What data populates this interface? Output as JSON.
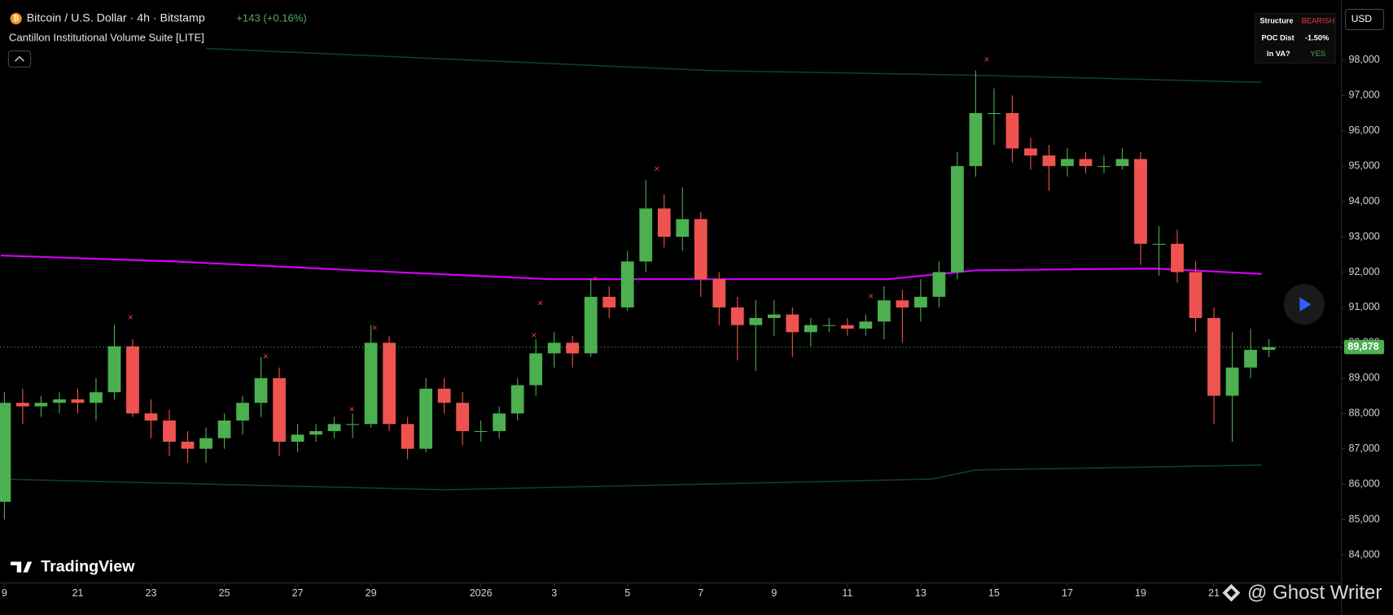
{
  "chart_data": {
    "type": "candlestick",
    "title": "Bitcoin / U.S. Dollar · 4h · Bitstamp",
    "change": "+143 (+0.16%)",
    "subtitle": "Cantillon Institutional Volume Suite [LITE]",
    "brand": "TradingView",
    "currency": "USD",
    "watermark": "@ Ghost Writer",
    "up_color": "#4caf50",
    "down_color": "#ef5350",
    "xlim": [
      -0.12,
      36.48
    ],
    "xticks": [
      {
        "value": 0,
        "label": "9"
      },
      {
        "value": 2,
        "label": "21"
      },
      {
        "value": 4,
        "label": "23"
      },
      {
        "value": 6,
        "label": "25"
      },
      {
        "value": 8,
        "label": "27"
      },
      {
        "value": 10,
        "label": "29"
      },
      {
        "value": 13,
        "label": "2026"
      },
      {
        "value": 15,
        "label": "3"
      },
      {
        "value": 17,
        "label": "5"
      },
      {
        "value": 19,
        "label": "7"
      },
      {
        "value": 21,
        "label": "9"
      },
      {
        "value": 23,
        "label": "11"
      },
      {
        "value": 25,
        "label": "13"
      },
      {
        "value": 27,
        "label": "15"
      },
      {
        "value": 29,
        "label": "17"
      },
      {
        "value": 31,
        "label": "19"
      },
      {
        "value": 33,
        "label": "21"
      }
    ],
    "ylim": [
      83200,
      99700
    ],
    "yticks": [
      {
        "value": 84000,
        "label": "84,000"
      },
      {
        "value": 85000,
        "label": "85,000"
      },
      {
        "value": 86000,
        "label": "86,000"
      },
      {
        "value": 87000,
        "label": "87,000"
      },
      {
        "value": 88000,
        "label": "88,000"
      },
      {
        "value": 89000,
        "label": "89,000"
      },
      {
        "value": 90000,
        "label": "90,000"
      },
      {
        "value": 91000,
        "label": "91,000"
      },
      {
        "value": 92000,
        "label": "92,000"
      },
      {
        "value": 93000,
        "label": "93,000"
      },
      {
        "value": 94000,
        "label": "94,000"
      },
      {
        "value": 95000,
        "label": "95,000"
      },
      {
        "value": 96000,
        "label": "96,000"
      },
      {
        "value": 97000,
        "label": "97,000"
      },
      {
        "value": 98000,
        "label": "98,000"
      }
    ],
    "x": [
      0,
      0.5,
      1,
      1.5,
      2,
      2.5,
      3,
      3.5,
      4,
      4.5,
      5,
      5.5,
      6,
      6.5,
      7,
      7.5,
      8,
      8.5,
      9,
      9.5,
      10,
      10.5,
      11,
      11.5,
      12,
      12.5,
      13,
      13.5,
      14,
      14.5,
      15,
      15.5,
      16,
      16.5,
      17,
      17.5,
      18,
      18.5,
      19,
      19.5,
      20,
      20.5,
      21,
      21.5,
      22,
      22.5,
      23,
      23.5,
      24,
      24.5,
      25,
      25.5,
      26,
      26.5,
      27,
      27.5,
      28,
      28.5,
      29,
      29.5,
      30,
      30.5,
      31,
      31.5,
      32,
      32.5,
      33,
      33.5,
      34,
      34.5
    ],
    "open": [
      85500,
      88300,
      88200,
      88300,
      88400,
      88300,
      88600,
      89900,
      88000,
      87800,
      87200,
      87000,
      87300,
      87800,
      88300,
      89000,
      87200,
      87400,
      87500,
      87700,
      87700,
      90000,
      87700,
      87000,
      88700,
      88300,
      87500,
      87500,
      88000,
      88800,
      89700,
      90000,
      89700,
      91300,
      91000,
      92300,
      93800,
      93000,
      93500,
      91800,
      91000,
      90500,
      90700,
      90800,
      90300,
      90500,
      90500,
      90400,
      90600,
      91200,
      91000,
      91300,
      92000,
      95000,
      96500,
      96500,
      95500,
      95300,
      95000,
      95200,
      95000,
      95000,
      95200,
      92800,
      92800,
      92000,
      90700,
      88500,
      89300,
      89800
    ],
    "high": [
      88600,
      88700,
      88500,
      88600,
      88700,
      89000,
      90500,
      90100,
      88400,
      88100,
      87500,
      87600,
      88000,
      88500,
      89600,
      89300,
      87700,
      87700,
      87900,
      88000,
      90500,
      90200,
      87900,
      89000,
      89000,
      88600,
      87800,
      88200,
      89000,
      90100,
      90300,
      90200,
      91800,
      91600,
      92600,
      94600,
      94200,
      94400,
      93700,
      92000,
      91300,
      91200,
      91200,
      91000,
      90700,
      90700,
      90700,
      90800,
      91600,
      91500,
      91800,
      92300,
      95400,
      97700,
      97200,
      97000,
      95800,
      95600,
      95500,
      95400,
      95300,
      95500,
      95400,
      93300,
      93200,
      92300,
      91000,
      90300,
      90400,
      90100
    ],
    "low": [
      85000,
      87700,
      87900,
      88000,
      88000,
      87800,
      88400,
      87900,
      87300,
      86800,
      86600,
      86600,
      87000,
      87400,
      87900,
      86800,
      86900,
      87200,
      87300,
      87300,
      87600,
      87500,
      86700,
      86900,
      88000,
      87100,
      87200,
      87300,
      87800,
      88500,
      89300,
      89300,
      89600,
      90700,
      90900,
      92000,
      92700,
      92600,
      91300,
      90500,
      89500,
      89200,
      90200,
      89600,
      89900,
      90300,
      90200,
      90200,
      90100,
      90000,
      90600,
      91000,
      91800,
      94700,
      95600,
      95100,
      94900,
      94300,
      94700,
      94800,
      94800,
      94900,
      92200,
      91900,
      91700,
      90300,
      87700,
      87200,
      89000,
      89600
    ],
    "close": [
      88300,
      88200,
      88300,
      88400,
      88300,
      88600,
      89900,
      88000,
      87800,
      87200,
      87000,
      87300,
      87800,
      88300,
      89000,
      87200,
      87400,
      87500,
      87700,
      87700,
      90000,
      87700,
      87000,
      88700,
      88300,
      87500,
      87500,
      88000,
      88800,
      89700,
      90000,
      89700,
      91300,
      91000,
      92300,
      93800,
      93000,
      93500,
      91800,
      91000,
      90500,
      90700,
      90800,
      90300,
      90500,
      90500,
      90400,
      90600,
      91200,
      91000,
      91300,
      92000,
      95000,
      96500,
      96500,
      95500,
      95300,
      95000,
      95200,
      95000,
      95000,
      95200,
      92800,
      92800,
      92000,
      90700,
      88500,
      89300,
      89800,
      89878
    ],
    "lines": [
      {
        "name": "POC",
        "color": "#d500f9",
        "x": [
          -0.1,
          4.7,
          9.6,
          14.9,
          24.1,
          26.5,
          31.4,
          34.3
        ],
        "values": [
          92470,
          92300,
          92050,
          91800,
          91800,
          92050,
          92100,
          91950
        ]
      },
      {
        "name": "VA High",
        "color": "#0f3d2a",
        "x": [
          5.5,
          19.3,
          26.5,
          34.3
        ],
        "values": [
          98330,
          97700,
          97570,
          97370
        ]
      },
      {
        "name": "VA Low",
        "color": "#0f3d2a",
        "x": [
          -0.1,
          12,
          25.3,
          26.5,
          34.3
        ],
        "values": [
          86140,
          85840,
          86140,
          86400,
          86540
        ]
      }
    ],
    "signals": {
      "x": [
        3.44,
        7.13,
        9.48,
        10.1,
        14.45,
        14.62,
        16.12,
        17.8,
        23.64,
        26.8
      ],
      "values": [
        90700,
        89600,
        88100,
        90400,
        90200,
        91100,
        91800,
        94900,
        91300,
        98000
      ]
    },
    "last_price": {
      "value": 89878,
      "label": "89,878"
    },
    "status_table": {
      "rows": [
        [
          "Structure",
          "BEARISH"
        ],
        [
          "POC Dist",
          "-1.50%"
        ],
        [
          "In VA?",
          "YES"
        ]
      ]
    }
  }
}
